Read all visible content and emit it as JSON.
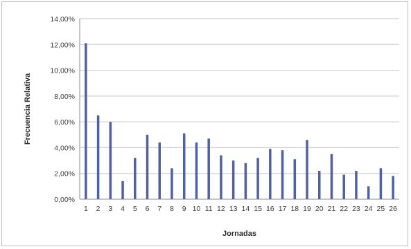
{
  "chart_data": {
    "type": "bar",
    "xlabel": "Jornadas",
    "ylabel": "Frecuencia Relativa",
    "ylim": [
      0,
      14
    ],
    "y_tick_labels": [
      "0,00%",
      "2,00%",
      "4,00%",
      "6,00%",
      "8,00%",
      "10,00%",
      "12,00%",
      "14,00%"
    ],
    "categories": [
      "1",
      "2",
      "3",
      "4",
      "5",
      "6",
      "7",
      "8",
      "9",
      "10",
      "11",
      "12",
      "13",
      "14",
      "15",
      "16",
      "17",
      "18",
      "19",
      "20",
      "21",
      "22",
      "23",
      "24",
      "25",
      "26"
    ],
    "values": [
      12.1,
      6.5,
      6.0,
      1.4,
      3.2,
      5.0,
      4.4,
      2.4,
      5.1,
      4.4,
      4.7,
      3.4,
      3.0,
      2.8,
      3.2,
      3.9,
      3.8,
      3.1,
      4.6,
      2.2,
      3.5,
      1.9,
      2.2,
      1.0,
      2.4,
      1.8
    ],
    "value_unit": "%",
    "grid": true,
    "legend": "none",
    "bar_color": "#4f5fa8"
  }
}
